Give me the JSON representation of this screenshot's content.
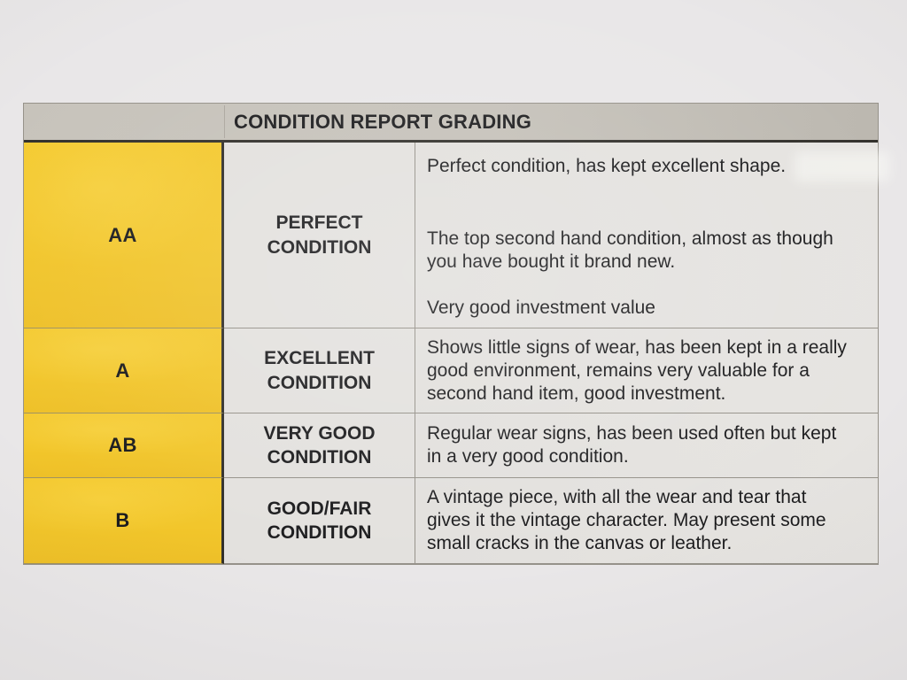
{
  "table": {
    "title": "CONDITION REPORT GRADING",
    "rows": [
      {
        "grade": "AA",
        "condition": "PERFECT CONDITION",
        "paragraphs": [
          "Perfect condition, has kept excellent shape.",
          "The top second hand condition, almost as though\nyou have bought it brand new.",
          "Very good investment value"
        ]
      },
      {
        "grade": "A",
        "condition": "EXCELLENT CONDITION",
        "paragraphs": [
          "Shows little signs of wear, has been kept in a really\ngood environment, remains very valuable for a\nsecond hand item, good investment."
        ]
      },
      {
        "grade": "AB",
        "condition": "VERY GOOD CONDITION",
        "paragraphs": [
          "Regular wear signs, has been used often but kept\nin a very good condition."
        ]
      },
      {
        "grade": "B",
        "condition": "GOOD/FAIR CONDITION",
        "paragraphs": [
          "A vintage piece, with all the wear and tear that\ngives it the vintage character. May present some\nsmall cracks in the canvas or leather."
        ]
      }
    ]
  },
  "colors": {
    "grade-bg": "#f2c62b",
    "header-bg": "#c5c1b9",
    "cell-bg": "#e3e1de",
    "paper-bg": "#e9e7e8",
    "line-dark": "#32302b",
    "line-thin": "#96928a",
    "text": "#1c1c1e"
  }
}
